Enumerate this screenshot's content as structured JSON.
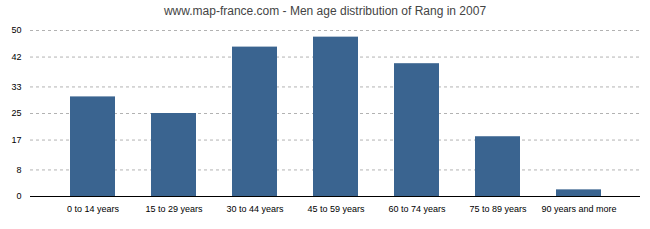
{
  "chart_data": {
    "type": "bar",
    "title": "www.map-france.com - Men age distribution of Rang in 2007",
    "categories": [
      "0 to 14 years",
      "15 to 29 years",
      "30 to 44 years",
      "45 to 59 years",
      "60 to 74 years",
      "75 to 89 years",
      "90 years and more"
    ],
    "values": [
      30,
      25,
      45,
      48,
      40,
      18,
      2
    ],
    "color": "#3a6490",
    "ylim": [
      0,
      50
    ],
    "yticks": [
      0,
      8,
      17,
      25,
      33,
      42,
      50
    ],
    "grid": true
  }
}
